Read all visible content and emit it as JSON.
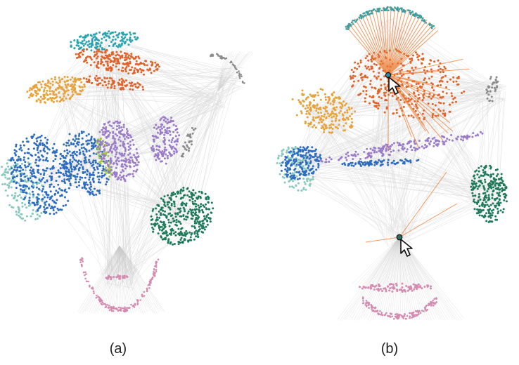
{
  "captions": {
    "a": "(a)",
    "b": "(b)"
  },
  "colors": {
    "teal": "#2aa3b0",
    "orange": "#e0642a",
    "gold": "#e8a23a",
    "blue": "#2d6cc0",
    "mint": "#86c9bd",
    "lime": "#a6c83c",
    "purple": "#9a7cc8",
    "gray": "#8c8c8c",
    "green": "#1f7a5a",
    "pink": "#d48bb0",
    "edge": "#b8b8b8",
    "highlight": "#ee7a2e"
  },
  "panels": [
    {
      "id": "a",
      "cursors": 0
    },
    {
      "id": "b",
      "cursors": 2
    }
  ]
}
